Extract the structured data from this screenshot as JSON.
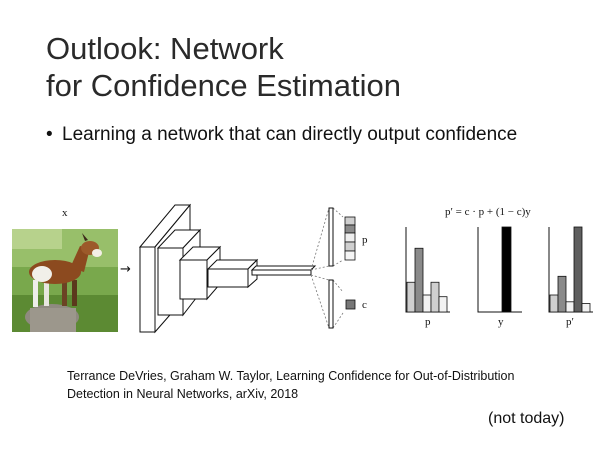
{
  "slide": {
    "title_line1": "Outlook: Network",
    "title_line2": "for Confidence Estimation",
    "bullet_marker": "•",
    "bullet_text": "Learning a network that can directly output confidence"
  },
  "figure": {
    "input_label": "x",
    "arrow_glyph": "→",
    "output_label_p": "p",
    "output_label_c": "c",
    "formula": "p′ = c · p + (1 − c)y",
    "plot_labels": [
      "p",
      "y",
      "p′"
    ],
    "plots": [
      {
        "name": "p",
        "values": [
          0.35,
          0.75,
          0.2,
          0.35,
          0.18
        ],
        "shades": [
          "#cfcfcf",
          "#8a8a8a",
          "#f2f2f2",
          "#cfcfcf",
          "#f2f2f2"
        ]
      },
      {
        "name": "y",
        "values": [
          0,
          0,
          1.0,
          0,
          0
        ],
        "shades": [
          "#000000",
          "#000000",
          "#000000",
          "#000000",
          "#000000"
        ]
      },
      {
        "name": "p′",
        "values": [
          0.2,
          0.42,
          0.12,
          1.0,
          0.1
        ],
        "shades": [
          "#cfcfcf",
          "#8a8a8a",
          "#f2f2f2",
          "#5f5f5f",
          "#f2f2f2"
        ]
      }
    ]
  },
  "citation": {
    "line1": "Terrance DeVries, Graham W. Taylor, Learning Confidence for Out-of-Distribution",
    "line2": "Detection in Neural Networks, arXiv, 2018"
  },
  "footnote": "(not today)"
}
